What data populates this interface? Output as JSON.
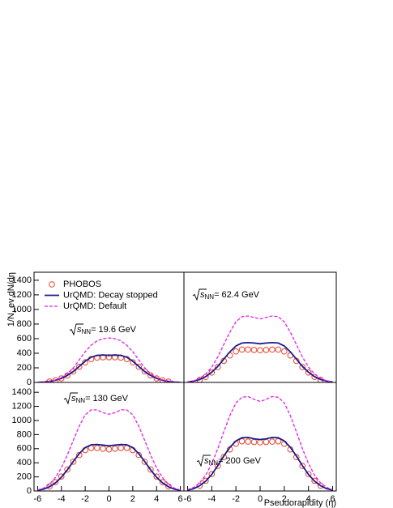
{
  "chart_data": [
    {
      "type": "line",
      "ylabel": "1/N_ev dN/dη",
      "legend": true,
      "annotation": {
        "root": "s",
        "sub": "NN",
        "text": "= 19.6 GeV"
      },
      "xlim": [
        -6.3,
        6.3
      ],
      "ylim": [
        0,
        1510
      ],
      "yticks": [
        0,
        200,
        400,
        600,
        800,
        1000,
        1200,
        1400
      ],
      "series": [
        {
          "name": "PHOBOS",
          "style": "markers",
          "color": "#e8432a",
          "x": [
            -5,
            -4.5,
            -4,
            -3.5,
            -3,
            -2.5,
            -2,
            -1.5,
            -1,
            -0.5,
            0,
            0.5,
            1,
            1.5,
            2,
            2.5,
            3,
            3.5,
            4,
            4.5,
            5
          ],
          "values": [
            12,
            28,
            55,
            95,
            150,
            215,
            275,
            320,
            340,
            345,
            345,
            345,
            340,
            320,
            275,
            215,
            150,
            95,
            55,
            28,
            12
          ]
        },
        {
          "name": "UrQMD: Decay stopped",
          "style": "solid",
          "color": "#1a1a8c",
          "x": [
            -6,
            -5.5,
            -5,
            -4.5,
            -4,
            -3.5,
            -3,
            -2.5,
            -2,
            -1.5,
            -1,
            -0.5,
            0,
            0.5,
            1,
            1.5,
            2,
            2.5,
            3,
            3.5,
            4,
            4.5,
            5,
            5.5,
            6
          ],
          "values": [
            1,
            5,
            14,
            30,
            55,
            95,
            150,
            220,
            290,
            345,
            370,
            375,
            370,
            375,
            370,
            345,
            290,
            220,
            150,
            95,
            55,
            30,
            14,
            5,
            1
          ]
        },
        {
          "name": "UrQMD: Default",
          "style": "dashed",
          "color": "#e61ee6",
          "x": [
            -6,
            -5.5,
            -5,
            -4.5,
            -4,
            -3.5,
            -3,
            -2.5,
            -2,
            -1.5,
            -1,
            -0.5,
            0,
            0.5,
            1,
            1.5,
            2,
            2.5,
            3,
            3.5,
            4,
            4.5,
            5,
            5.5,
            6
          ],
          "values": [
            1,
            5,
            14,
            32,
            65,
            120,
            200,
            310,
            420,
            510,
            570,
            600,
            610,
            600,
            570,
            510,
            420,
            310,
            200,
            120,
            65,
            32,
            14,
            5,
            1
          ]
        }
      ]
    },
    {
      "type": "line",
      "annotation": {
        "root": "s",
        "sub": "NN",
        "text": "= 62.4 GeV"
      },
      "xlim": [
        -6.3,
        6.3
      ],
      "ylim": [
        0,
        1510
      ],
      "series": [
        {
          "style": "markers",
          "color": "#e8432a",
          "x": [
            -5,
            -4.5,
            -4,
            -3.5,
            -3,
            -2.5,
            -2,
            -1.5,
            -1,
            -0.5,
            0,
            0.5,
            1,
            1.5,
            2,
            2.5,
            3,
            3.5,
            4,
            4.5,
            5
          ],
          "values": [
            35,
            75,
            135,
            210,
            295,
            370,
            425,
            450,
            450,
            445,
            440,
            445,
            450,
            450,
            425,
            370,
            295,
            210,
            135,
            75,
            35
          ]
        },
        {
          "style": "solid",
          "color": "#1a1a8c",
          "x": [
            -6,
            -5.5,
            -5,
            -4.5,
            -4,
            -3.5,
            -3,
            -2.5,
            -2,
            -1.5,
            -1,
            -0.5,
            0,
            0.5,
            1,
            1.5,
            2,
            2.5,
            3,
            3.5,
            4,
            4.5,
            5,
            5.5,
            6
          ],
          "values": [
            7,
            18,
            40,
            80,
            140,
            220,
            320,
            420,
            500,
            540,
            545,
            540,
            530,
            540,
            545,
            540,
            500,
            420,
            320,
            220,
            140,
            80,
            40,
            18,
            7
          ]
        },
        {
          "style": "dashed",
          "color": "#e61ee6",
          "x": [
            -6,
            -5.5,
            -5,
            -4.5,
            -4,
            -3.5,
            -3,
            -2.5,
            -2,
            -1.5,
            -1,
            -0.5,
            0,
            0.5,
            1,
            1.5,
            2,
            2.5,
            3,
            3.5,
            4,
            4.5,
            5,
            5.5,
            6
          ],
          "values": [
            8,
            22,
            55,
            115,
            210,
            350,
            520,
            690,
            830,
            900,
            910,
            890,
            870,
            890,
            910,
            900,
            830,
            690,
            520,
            350,
            210,
            115,
            55,
            22,
            8
          ]
        }
      ]
    },
    {
      "type": "line",
      "annotation": {
        "root": "s",
        "sub": "NN",
        "text": "= 130 GeV"
      },
      "xlim": [
        -6.3,
        6.3
      ],
      "ylim": [
        0,
        1540
      ],
      "yticks": [
        0,
        200,
        400,
        600,
        800,
        1000,
        1200,
        1400
      ],
      "xticks": [
        -6,
        -4,
        -2,
        0,
        2,
        4,
        6
      ],
      "series": [
        {
          "style": "markers",
          "color": "#e8432a",
          "x": [
            -5,
            -4.5,
            -4,
            -3.5,
            -3,
            -2.5,
            -2,
            -1.5,
            -1,
            -0.5,
            0,
            0.5,
            1,
            1.5,
            2,
            2.5,
            3,
            3.5,
            4,
            4.5,
            5
          ],
          "values": [
            65,
            125,
            205,
            305,
            415,
            510,
            580,
            610,
            610,
            600,
            590,
            600,
            610,
            610,
            580,
            510,
            415,
            305,
            205,
            125,
            65
          ]
        },
        {
          "style": "solid",
          "color": "#1a1a8c",
          "x": [
            -6,
            -5.5,
            -5,
            -4.5,
            -4,
            -3.5,
            -3,
            -2.5,
            -2,
            -1.5,
            -1,
            -0.5,
            0,
            0.5,
            1,
            1.5,
            2,
            2.5,
            3,
            3.5,
            4,
            4.5,
            5,
            5.5,
            6
          ],
          "values": [
            10,
            25,
            60,
            115,
            195,
            300,
            420,
            530,
            615,
            655,
            660,
            650,
            640,
            650,
            660,
            655,
            615,
            530,
            420,
            300,
            195,
            115,
            60,
            25,
            10
          ]
        },
        {
          "style": "dashed",
          "color": "#e61ee6",
          "x": [
            -6,
            -5.5,
            -5,
            -4.5,
            -4,
            -3.5,
            -3,
            -2.5,
            -2,
            -1.5,
            -1,
            -0.5,
            0,
            0.5,
            1,
            1.5,
            2,
            2.5,
            3,
            3.5,
            4,
            4.5,
            5,
            5.5,
            6
          ],
          "values": [
            15,
            40,
            95,
            190,
            330,
            510,
            720,
            920,
            1080,
            1150,
            1150,
            1110,
            1090,
            1110,
            1150,
            1150,
            1080,
            920,
            720,
            510,
            330,
            190,
            95,
            40,
            15
          ]
        }
      ]
    },
    {
      "type": "line",
      "xlabel": "Pseudorapidity (η)",
      "annotation": {
        "root": "s",
        "sub": "NN",
        "text": "= 200 GeV"
      },
      "xlim": [
        -6.3,
        6.3
      ],
      "ylim": [
        0,
        1540
      ],
      "xticks": [
        -6,
        -4,
        -2,
        0,
        2,
        4,
        6
      ],
      "series": [
        {
          "style": "markers",
          "color": "#e8432a",
          "x": [
            -5,
            -4.5,
            -4,
            -3.5,
            -3,
            -2.5,
            -2,
            -1.5,
            -1,
            -0.5,
            0,
            0.5,
            1,
            1.5,
            2,
            2.5,
            3,
            3.5,
            4,
            4.5,
            5
          ],
          "values": [
            75,
            145,
            240,
            355,
            480,
            590,
            670,
            705,
            700,
            695,
            690,
            695,
            700,
            705,
            670,
            590,
            480,
            355,
            240,
            145,
            75
          ]
        },
        {
          "style": "solid",
          "color": "#1a1a8c",
          "x": [
            -6,
            -5.5,
            -5,
            -4.5,
            -4,
            -3.5,
            -3,
            -2.5,
            -2,
            -1.5,
            -1,
            -0.5,
            0,
            0.5,
            1,
            1.5,
            2,
            2.5,
            3,
            3.5,
            4,
            4.5,
            5,
            5.5,
            6
          ],
          "values": [
            12,
            32,
            75,
            140,
            235,
            360,
            495,
            620,
            710,
            755,
            760,
            740,
            730,
            740,
            760,
            755,
            710,
            620,
            495,
            360,
            235,
            140,
            75,
            32,
            12
          ]
        },
        {
          "style": "dashed",
          "color": "#e61ee6",
          "x": [
            -6,
            -5.5,
            -5,
            -4.5,
            -4,
            -3.5,
            -3,
            -2.5,
            -2,
            -1.5,
            -1,
            -0.5,
            0,
            0.5,
            1,
            1.5,
            2,
            2.5,
            3,
            3.5,
            4,
            4.5,
            5,
            5.5,
            6
          ],
          "values": [
            18,
            50,
            115,
            225,
            390,
            600,
            840,
            1070,
            1250,
            1330,
            1340,
            1300,
            1270,
            1300,
            1340,
            1330,
            1250,
            1070,
            840,
            600,
            390,
            225,
            115,
            50,
            18
          ]
        }
      ]
    }
  ]
}
